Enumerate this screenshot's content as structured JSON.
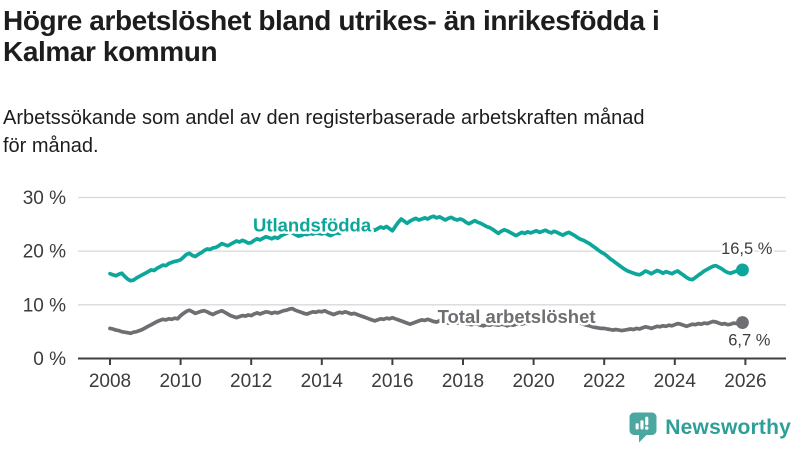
{
  "header": {
    "title_line1": "Högre arbetslöshet bland utrikes- än inrikesfödda i",
    "title_line2": "Kalmar kommun",
    "subtitle_line1": "Arbetssökande som andel av den registerbaserade arbetskraften månad",
    "subtitle_line2": "för månad."
  },
  "logo": {
    "wordmark": "Newsworthy",
    "wordmark_color": "#2d9f98",
    "icon": "newsworthy-chart-bubble-icon",
    "icon_color": "#4da7a1"
  },
  "colors": {
    "axis": "#3f3f3f",
    "grid": "#d9d9d9",
    "axis_text": "#3c3c3c",
    "value_label_text": "#3c3c3c",
    "background": "#ffffff"
  },
  "chart_data": {
    "type": "line",
    "title": "Högre arbetslöshet bland utrikes- än inrikesfödda i Kalmar kommun",
    "subtitle": "Arbetssökande som andel av den registerbaserade arbetskraften månad för månad.",
    "x_unit": "month",
    "x_start_year": 2008,
    "x_end_year_approx": 2025.92,
    "x_ticks": [
      2008,
      2010,
      2012,
      2014,
      2016,
      2018,
      2020,
      2022,
      2024,
      2026
    ],
    "y_ticks": [
      {
        "value": 0,
        "label": "0 %"
      },
      {
        "value": 10,
        "label": "10 %"
      },
      {
        "value": 20,
        "label": "20 %"
      },
      {
        "value": 30,
        "label": "30 %"
      }
    ],
    "ylim": [
      0,
      31
    ],
    "grid": "horizontal",
    "legend": "inline-labels",
    "series": [
      {
        "id": "utlandsfodda",
        "name": "Utlandsfödda",
        "color": "#0ca69b",
        "end_label": "16,5 %",
        "end_value": 16.5,
        "label_pos": {
          "year": 2012.05,
          "value": 24.9
        },
        "end_label_offset": {
          "dx": 30,
          "dy": -16
        },
        "values": [
          15.8,
          15.6,
          15.4,
          15.7,
          15.9,
          15.3,
          14.8,
          14.5,
          14.6,
          15.0,
          15.3,
          15.6,
          15.9,
          16.2,
          16.5,
          16.4,
          16.8,
          17.1,
          17.4,
          17.3,
          17.7,
          17.9,
          18.1,
          18.2,
          18.4,
          18.9,
          19.4,
          19.6,
          19.2,
          19.0,
          19.4,
          19.7,
          20.1,
          20.4,
          20.3,
          20.6,
          20.7,
          21.0,
          21.4,
          21.2,
          21.0,
          21.3,
          21.6,
          21.9,
          21.7,
          22.0,
          21.8,
          21.5,
          21.6,
          22.0,
          22.3,
          22.1,
          22.4,
          22.7,
          22.5,
          22.3,
          22.6,
          22.4,
          22.8,
          23.1,
          23.3,
          23.6,
          23.4,
          23.1,
          22.8,
          22.9,
          23.2,
          23.1,
          23.3,
          23.2,
          23.4,
          23.3,
          23.2,
          23.4,
          23.1,
          22.9,
          23.2,
          23.4,
          23.3,
          23.6,
          23.8,
          23.6,
          23.9,
          24.1,
          24.0,
          24.3,
          24.5,
          24.2,
          24.4,
          24.1,
          23.9,
          24.2,
          24.5,
          24.3,
          24.6,
          24.2,
          23.8,
          24.6,
          25.4,
          26.0,
          25.6,
          25.2,
          25.6,
          25.9,
          26.1,
          25.8,
          26.0,
          26.2,
          26.0,
          26.3,
          26.5,
          26.2,
          26.4,
          26.1,
          25.8,
          26.1,
          26.3,
          26.0,
          25.8,
          26.0,
          25.8,
          25.4,
          25.1,
          25.4,
          25.7,
          25.4,
          25.2,
          24.9,
          24.6,
          24.4,
          24.1,
          23.7,
          23.3,
          23.7,
          24.0,
          23.8,
          23.5,
          23.2,
          22.9,
          23.2,
          23.5,
          23.3,
          23.6,
          23.4,
          23.6,
          23.8,
          23.5,
          23.7,
          23.9,
          23.6,
          23.4,
          23.7,
          23.5,
          23.2,
          23.0,
          23.3,
          23.5,
          23.2,
          22.9,
          22.5,
          22.2,
          22.0,
          21.7,
          21.4,
          21.0,
          20.6,
          20.2,
          19.8,
          19.5,
          19.1,
          18.6,
          18.2,
          17.8,
          17.4,
          17.0,
          16.6,
          16.3,
          16.1,
          15.9,
          15.7,
          15.6,
          15.9,
          16.3,
          16.1,
          15.8,
          16.1,
          16.4,
          16.2,
          15.9,
          16.2,
          16.0,
          15.8,
          16.1,
          16.3,
          15.9,
          15.5,
          15.1,
          14.8,
          14.7,
          15.1,
          15.5,
          15.9,
          16.3,
          16.6,
          16.9,
          17.2,
          17.3,
          17.0,
          16.7,
          16.3,
          16.0,
          15.9,
          16.1,
          16.3,
          16.4,
          16.5
        ]
      },
      {
        "id": "total",
        "name": "Total arbetslöshet",
        "color": "#6e6e73",
        "end_label": "6,7 %",
        "end_value": 6.7,
        "label_pos": {
          "year": 2017.28,
          "value": 7.8
        },
        "end_label_offset": {
          "dx": 28,
          "dy": 23
        },
        "values": [
          5.6,
          5.5,
          5.3,
          5.2,
          5.0,
          4.9,
          4.8,
          4.7,
          4.9,
          5.0,
          5.2,
          5.4,
          5.7,
          6.0,
          6.3,
          6.6,
          6.9,
          7.1,
          7.3,
          7.2,
          7.4,
          7.3,
          7.5,
          7.4,
          8.0,
          8.4,
          8.8,
          9.0,
          8.7,
          8.4,
          8.6,
          8.8,
          8.9,
          8.7,
          8.4,
          8.2,
          8.5,
          8.7,
          8.9,
          8.6,
          8.3,
          8.0,
          7.8,
          7.6,
          7.8,
          8.0,
          7.9,
          8.1,
          8.0,
          8.3,
          8.5,
          8.3,
          8.5,
          8.7,
          8.6,
          8.4,
          8.6,
          8.5,
          8.7,
          8.9,
          9.0,
          9.2,
          9.3,
          9.0,
          8.8,
          8.6,
          8.4,
          8.3,
          8.5,
          8.7,
          8.6,
          8.8,
          8.7,
          8.9,
          8.6,
          8.4,
          8.2,
          8.4,
          8.6,
          8.5,
          8.7,
          8.5,
          8.3,
          8.4,
          8.2,
          8.0,
          7.8,
          7.6,
          7.4,
          7.2,
          7.0,
          7.2,
          7.4,
          7.3,
          7.5,
          7.4,
          7.6,
          7.4,
          7.2,
          7.0,
          6.8,
          6.6,
          6.4,
          6.6,
          6.8,
          7.0,
          7.2,
          7.1,
          7.3,
          7.1,
          6.9,
          6.8,
          7.0,
          6.9,
          6.7,
          6.6,
          6.8,
          6.7,
          6.6,
          6.8,
          6.7,
          6.5,
          6.4,
          6.3,
          6.5,
          6.4,
          6.2,
          6.1,
          6.3,
          6.2,
          6.4,
          6.3,
          6.2,
          6.4,
          6.3,
          6.1,
          6.3,
          6.2,
          6.4,
          6.5,
          6.4,
          6.6,
          6.5,
          6.7,
          6.9,
          7.2,
          7.8,
          8.3,
          8.5,
          8.6,
          8.4,
          8.2,
          8.0,
          7.8,
          7.6,
          7.5,
          7.4,
          7.2,
          7.0,
          6.8,
          6.6,
          6.4,
          6.2,
          6.1,
          5.9,
          5.8,
          5.7,
          5.6,
          5.6,
          5.5,
          5.4,
          5.3,
          5.4,
          5.3,
          5.2,
          5.3,
          5.4,
          5.5,
          5.4,
          5.6,
          5.5,
          5.7,
          5.9,
          5.8,
          5.6,
          5.8,
          6.0,
          5.9,
          6.1,
          6.0,
          6.2,
          6.1,
          6.3,
          6.5,
          6.4,
          6.2,
          6.0,
          6.2,
          6.4,
          6.3,
          6.5,
          6.4,
          6.6,
          6.5,
          6.7,
          6.9,
          6.8,
          6.6,
          6.4,
          6.5,
          6.3,
          6.4,
          6.6,
          6.5,
          6.6,
          6.7
        ]
      }
    ]
  }
}
